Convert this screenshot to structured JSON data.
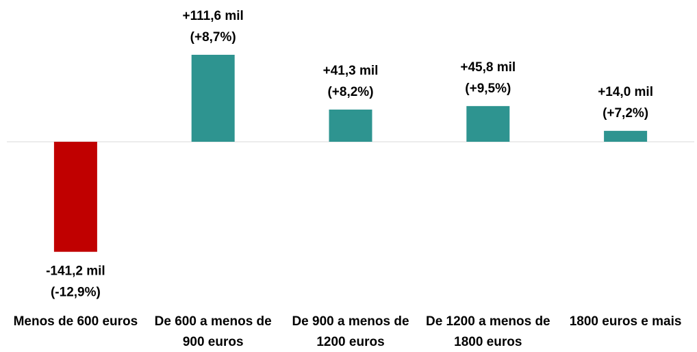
{
  "chart_data": {
    "type": "bar",
    "categories": [
      "Menos de 600 euros",
      "De 600 a menos de 900 euros",
      "De 900 a menos de 1200 euros",
      "De 1200 a menos de 1800 euros",
      "1800 euros e mais"
    ],
    "values": [
      -141.2,
      111.6,
      41.3,
      45.8,
      14.0
    ],
    "value_labels": [
      "-141,2 mil",
      "+111,6 mil",
      "+41,3 mil",
      "+45,8 mil",
      "+14,0 mil"
    ],
    "percent_labels": [
      "(-12,9%)",
      "(+8,7%)",
      "(+8,2%)",
      "(+9,5%)",
      "(+7,2%)"
    ],
    "colors": [
      "#c00000",
      "#2e9490",
      "#2e9490",
      "#2e9490",
      "#2e9490"
    ],
    "ylim": [
      -200,
      150
    ]
  }
}
